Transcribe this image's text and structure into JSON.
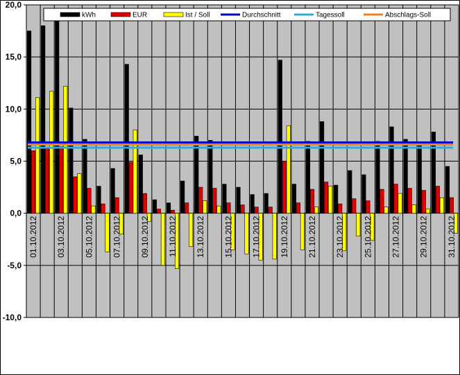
{
  "chart_data": {
    "type": "bar",
    "title": "",
    "xlabel": "",
    "ylabel": "",
    "ylim": [
      -10,
      20
    ],
    "yticks": [
      "20,0",
      "15,0",
      "10,0",
      "5,0",
      "0,0",
      "-5,0",
      "-10,0"
    ],
    "ytick_values": [
      20,
      15,
      10,
      5,
      0,
      -5,
      -10
    ],
    "grid": true,
    "legend_position": "top",
    "categories": [
      "01.10.2012",
      "02.10.2012",
      "03.10.2012",
      "04.10.2012",
      "05.10.2012",
      "06.10.2012",
      "07.10.2012",
      "08.10.2012",
      "09.10.2012",
      "10.10.2012",
      "11.10.2012",
      "12.10.2012",
      "13.10.2012",
      "14.10.2012",
      "15.10.2012",
      "16.10.2012",
      "17.10.2012",
      "18.10.2012",
      "19.10.2012",
      "20.10.2012",
      "21.10.2012",
      "22.10.2012",
      "23.10.2012",
      "24.10.2012",
      "25.10.2012",
      "26.10.2012",
      "27.10.2012",
      "28.10.2012",
      "29.10.2012",
      "30.10.2012",
      "31.10.2012"
    ],
    "shown_xtick_labels": [
      "01.10.2012",
      "03.10.2012",
      "05.10.2012",
      "07.10.2012",
      "09.10.2012",
      "11.10.2012",
      "13.10.2012",
      "15.10.2012",
      "17.10.2012",
      "19.10.2012",
      "21.10.2012",
      "23.10.2012",
      "25.10.2012",
      "27.10.2012",
      "29.10.2012",
      "31.10.2012"
    ],
    "series": [
      {
        "name": "kWh",
        "color": "#000000",
        "values": [
          17.5,
          18.0,
          18.5,
          10.1,
          7.1,
          2.6,
          4.3,
          14.3,
          5.6,
          1.3,
          1.0,
          3.1,
          7.4,
          7.0,
          2.8,
          2.5,
          1.8,
          1.9,
          14.7,
          2.8,
          6.9,
          8.8,
          2.7,
          4.1,
          3.7,
          6.9,
          8.3,
          7.1,
          6.7,
          7.8,
          4.5
        ]
      },
      {
        "name": "EUR",
        "color": "#e00000",
        "values": [
          6.0,
          6.2,
          6.4,
          3.5,
          2.4,
          0.9,
          1.5,
          4.9,
          1.9,
          0.4,
          0.3,
          1.0,
          2.5,
          2.4,
          1.0,
          0.8,
          0.6,
          0.6,
          5.0,
          1.0,
          2.3,
          3.0,
          0.9,
          1.4,
          1.2,
          2.3,
          2.8,
          2.4,
          2.2,
          2.6,
          1.5
        ]
      },
      {
        "name": "Ist / Soll",
        "color": "#ffff00",
        "values": [
          11.1,
          11.7,
          12.2,
          3.8,
          0.7,
          -3.7,
          -2.0,
          8.0,
          -0.8,
          -5.0,
          -5.3,
          -3.2,
          1.2,
          0.7,
          -3.5,
          -3.9,
          -4.5,
          -4.4,
          8.4,
          -3.5,
          0.6,
          2.6,
          -3.6,
          -2.2,
          -2.6,
          0.6,
          1.9,
          0.8,
          0.4,
          1.5,
          -1.9
        ]
      }
    ],
    "lines": [
      {
        "name": "Durchschnitt",
        "color": "#0000c0",
        "value": 6.8
      },
      {
        "name": "Tagessoll",
        "color": "#33aadd",
        "value": 6.3
      },
      {
        "name": "Abschlags-Soll",
        "color": "#f08020",
        "value": 6.6
      }
    ],
    "plot_background": "#c0c0c0"
  }
}
